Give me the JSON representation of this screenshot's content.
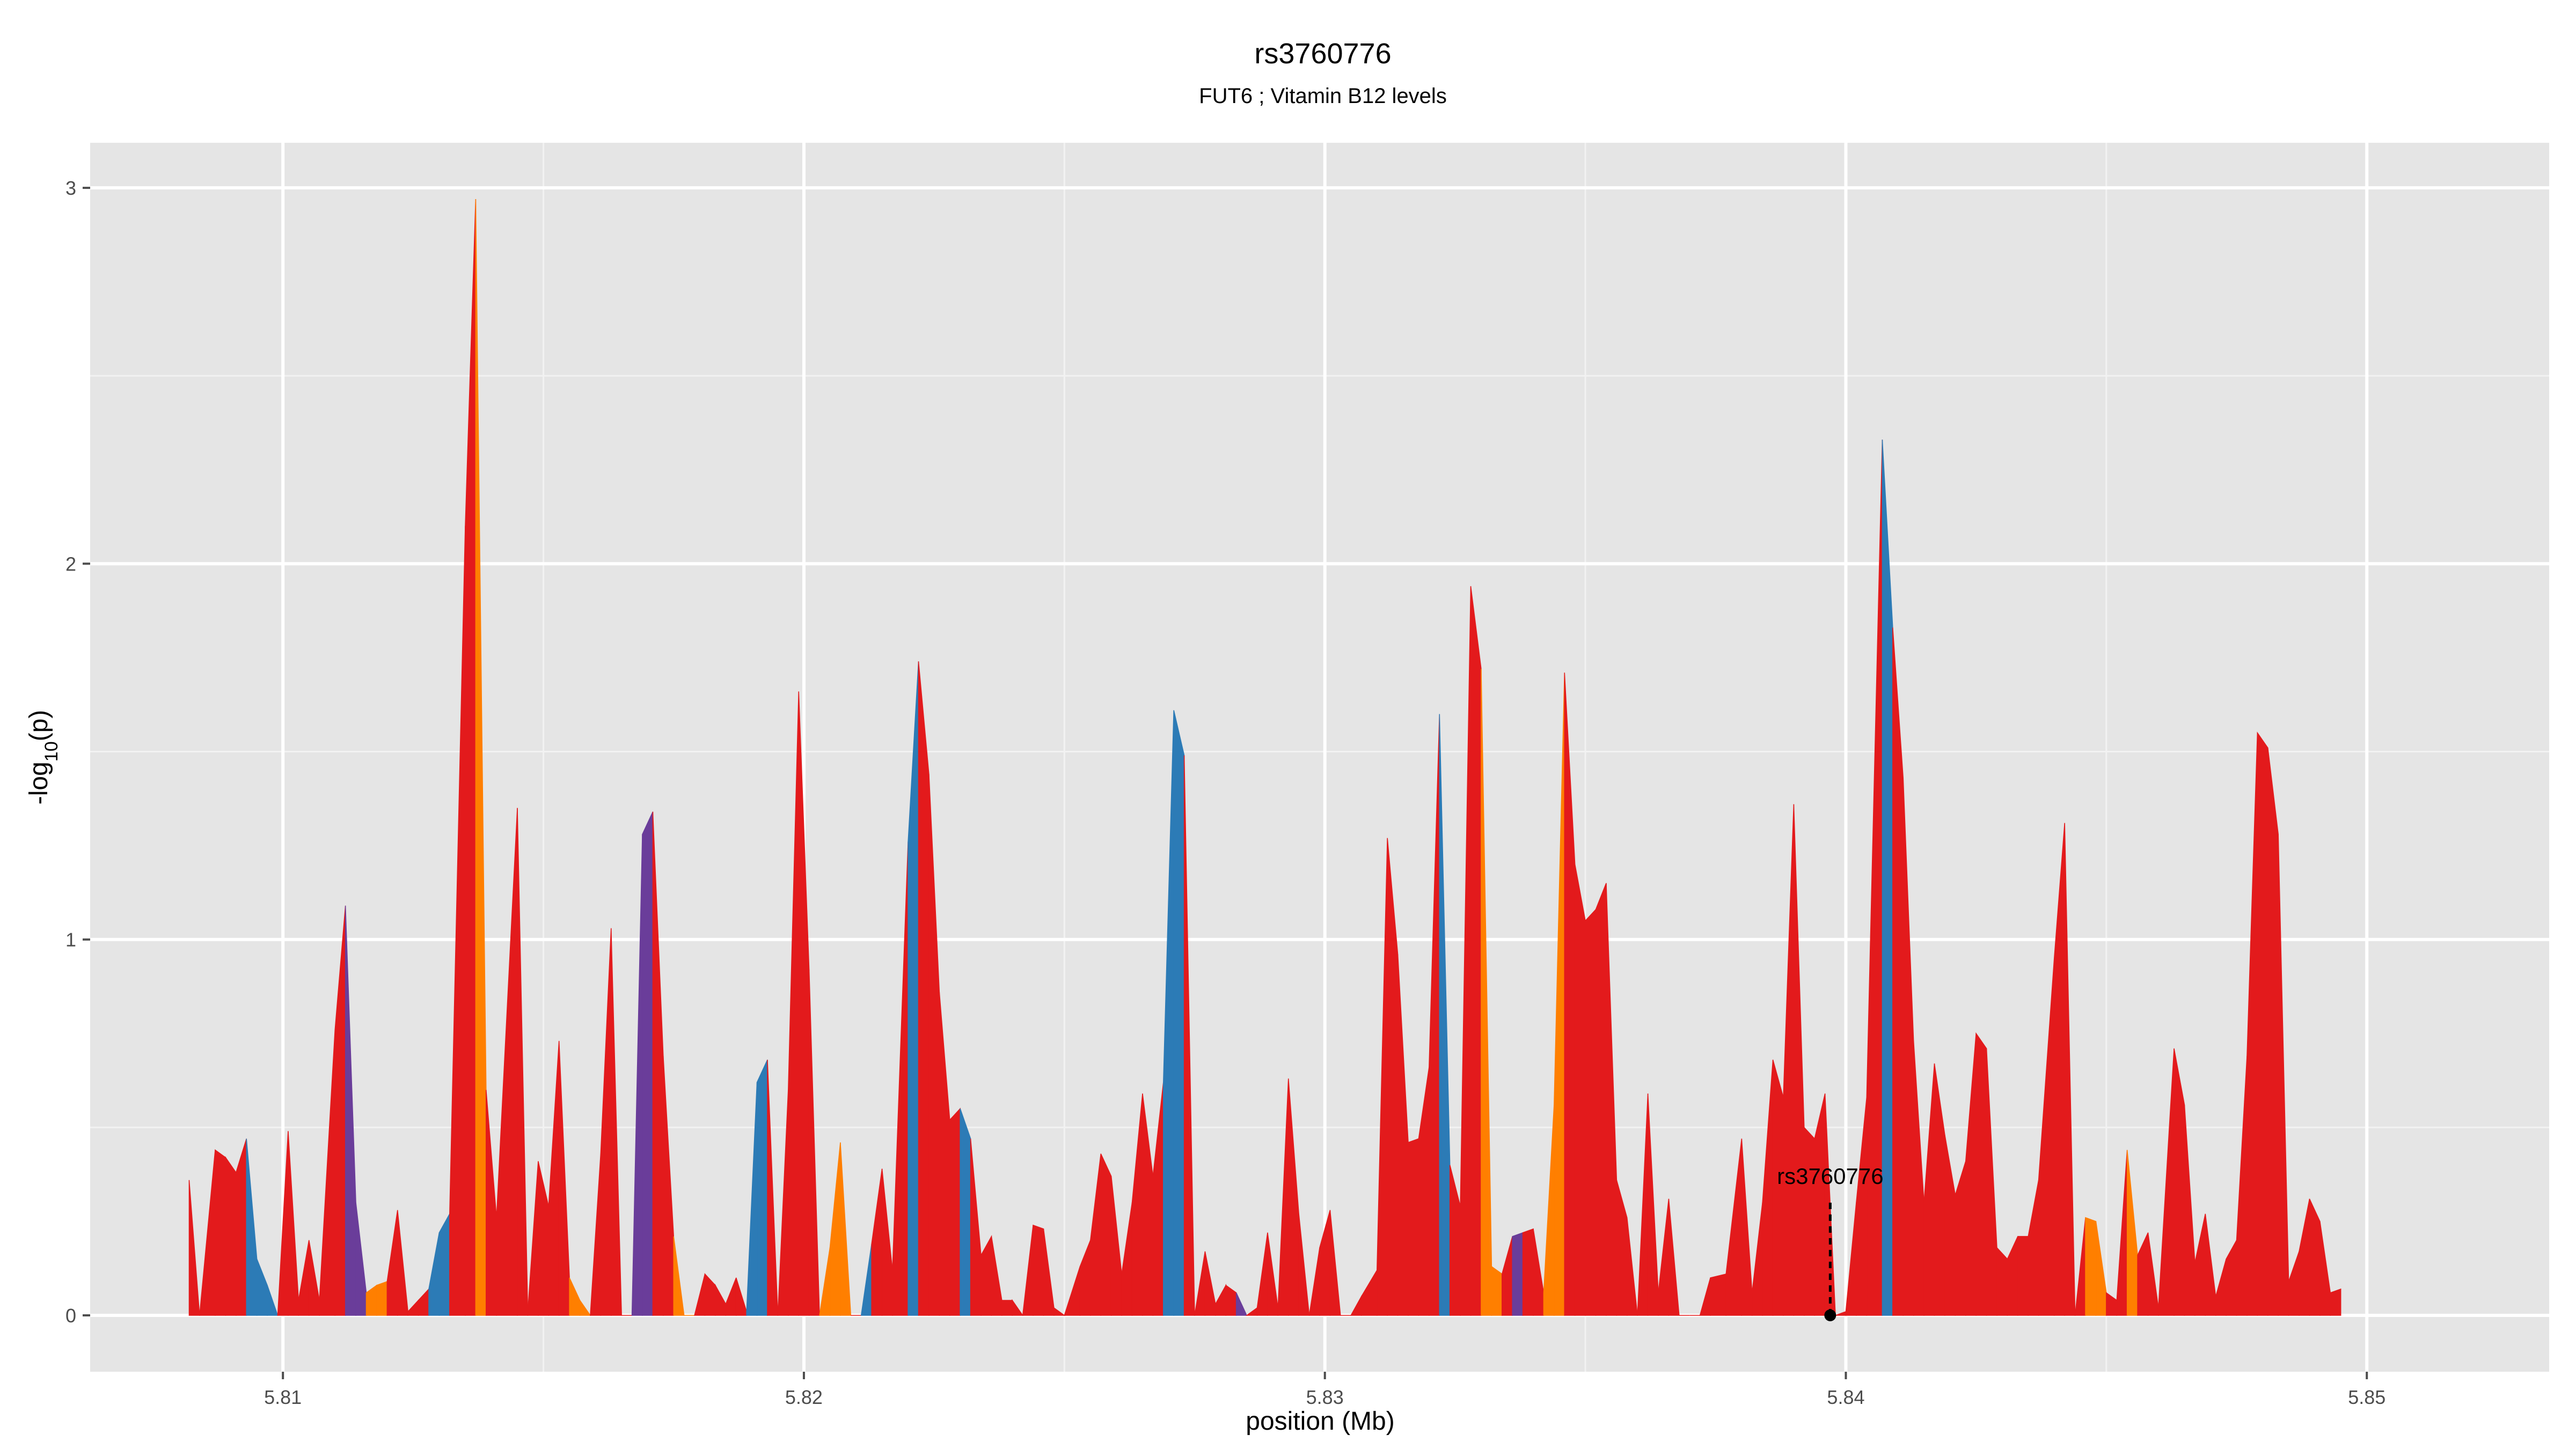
{
  "chart_data": {
    "type": "area",
    "title": "rs3760776",
    "subtitle": "FUT6 ; Vitamin B12 levels",
    "xlabel": "position (Mb)",
    "ylabel": "-log10(p)",
    "ylabel_base": "-log",
    "ylabel_sub": "10",
    "ylabel_tail": "(p)",
    "xlim": [
      5.8063,
      5.8535
    ],
    "ylim": [
      -0.15,
      3.12
    ],
    "x_ticks": [
      5.81,
      5.82,
      5.83,
      5.84,
      5.85
    ],
    "x_tick_labels": [
      "5.81",
      "5.82",
      "5.83",
      "5.84",
      "5.85"
    ],
    "y_ticks": [
      0,
      1,
      2,
      3
    ],
    "y_tick_labels": [
      "0",
      "1",
      "2",
      "3"
    ],
    "grid": true,
    "background": "#e5e5e5",
    "colors": {
      "red": "#e31a1c",
      "blue": "#2c7bb6",
      "orange": "#ff7f00",
      "purple": "#6a3d9a"
    },
    "highlight": {
      "label": "rs3760776",
      "x": 5.8397,
      "y": 0
    },
    "series": [
      {
        "points": [
          [
            5.8082,
            0.36
          ],
          [
            5.8084,
            0.0
          ],
          [
            5.8087,
            0.44
          ],
          [
            5.8089,
            0.42
          ],
          [
            5.8091,
            0.38
          ],
          [
            5.8093,
            0.47,
            "blue"
          ],
          [
            5.8095,
            0.15,
            "blue"
          ],
          [
            5.8097,
            0.08,
            "blue"
          ],
          [
            5.8099,
            0.0
          ],
          [
            5.8101,
            0.49
          ],
          [
            5.8103,
            0.04
          ],
          [
            5.8105,
            0.2
          ],
          [
            5.8107,
            0.04
          ],
          [
            5.811,
            0.76
          ],
          [
            5.8112,
            1.09,
            "purple"
          ],
          [
            5.8114,
            0.3,
            "purple"
          ],
          [
            5.8116,
            0.06,
            "orange"
          ],
          [
            5.8118,
            0.08,
            "orange"
          ],
          [
            5.812,
            0.09
          ],
          [
            5.8122,
            0.28
          ],
          [
            5.8124,
            0.01
          ],
          [
            5.8126,
            0.04
          ],
          [
            5.8128,
            0.07,
            "blue"
          ],
          [
            5.813,
            0.22,
            "blue"
          ],
          [
            5.8132,
            0.27
          ],
          [
            5.8135,
            2.1
          ],
          [
            5.8137,
            2.97,
            "orange"
          ],
          [
            5.8139,
            0.6
          ],
          [
            5.8141,
            0.26
          ],
          [
            5.8145,
            1.35
          ],
          [
            5.8147,
            0.01
          ],
          [
            5.8149,
            0.41
          ],
          [
            5.8151,
            0.29
          ],
          [
            5.8153,
            0.73
          ],
          [
            5.8155,
            0.1,
            "orange"
          ],
          [
            5.8157,
            0.04,
            "orange"
          ],
          [
            5.8159,
            0.0
          ],
          [
            5.8161,
            0.43
          ],
          [
            5.8163,
            1.03
          ],
          [
            5.8165,
            0.0
          ],
          [
            5.8167,
            0.0,
            "purple"
          ],
          [
            5.8169,
            1.28,
            "purple"
          ],
          [
            5.8171,
            1.34
          ],
          [
            5.8173,
            0.69
          ],
          [
            5.8175,
            0.21,
            "orange"
          ],
          [
            5.8177,
            0.0,
            "orange"
          ],
          [
            5.8179,
            0.0
          ],
          [
            5.8181,
            0.11
          ],
          [
            5.8183,
            0.08
          ],
          [
            5.8185,
            0.03
          ],
          [
            5.8187,
            0.1
          ],
          [
            5.8189,
            0.01,
            "blue"
          ],
          [
            5.8191,
            0.62,
            "blue"
          ],
          [
            5.8193,
            0.68
          ],
          [
            5.8195,
            0.0
          ],
          [
            5.8197,
            0.6
          ],
          [
            5.8199,
            1.66
          ],
          [
            5.8201,
            0.92
          ],
          [
            5.8203,
            0.0,
            "orange"
          ],
          [
            5.8205,
            0.18,
            "orange"
          ],
          [
            5.8207,
            0.46,
            "orange"
          ],
          [
            5.8209,
            0.0
          ],
          [
            5.8211,
            0.0,
            "blue"
          ],
          [
            5.8213,
            0.19
          ],
          [
            5.8215,
            0.39
          ],
          [
            5.8217,
            0.12
          ],
          [
            5.822,
            1.26,
            "blue"
          ],
          [
            5.8222,
            1.74
          ],
          [
            5.8224,
            1.44
          ],
          [
            5.8226,
            0.86
          ],
          [
            5.8228,
            0.52
          ],
          [
            5.823,
            0.55,
            "blue"
          ],
          [
            5.8232,
            0.47
          ],
          [
            5.8234,
            0.16
          ],
          [
            5.8236,
            0.21
          ],
          [
            5.8238,
            0.04
          ],
          [
            5.824,
            0.04
          ],
          [
            5.8242,
            0.0
          ],
          [
            5.8244,
            0.24
          ],
          [
            5.8246,
            0.23
          ],
          [
            5.8248,
            0.02
          ],
          [
            5.825,
            0.0
          ],
          [
            5.8253,
            0.13
          ],
          [
            5.8255,
            0.2
          ],
          [
            5.8257,
            0.43
          ],
          [
            5.8259,
            0.37
          ],
          [
            5.8261,
            0.11
          ],
          [
            5.8263,
            0.3
          ],
          [
            5.8265,
            0.59
          ],
          [
            5.8267,
            0.37
          ],
          [
            5.8269,
            0.62,
            "blue"
          ],
          [
            5.8271,
            1.61,
            "blue"
          ],
          [
            5.8273,
            1.49
          ],
          [
            5.8275,
            0.0
          ],
          [
            5.8277,
            0.17
          ],
          [
            5.8279,
            0.03
          ],
          [
            5.8281,
            0.08
          ],
          [
            5.8283,
            0.06,
            "purple"
          ],
          [
            5.8285,
            0.0
          ],
          [
            5.8287,
            0.02
          ],
          [
            5.8289,
            0.22
          ],
          [
            5.8291,
            0.02
          ],
          [
            5.8293,
            0.63
          ],
          [
            5.8295,
            0.27
          ],
          [
            5.8297,
            0.0
          ],
          [
            5.8299,
            0.18
          ],
          [
            5.8301,
            0.28
          ],
          [
            5.8303,
            0.0
          ],
          [
            5.8305,
            0.0
          ],
          [
            5.8307,
            0.05
          ],
          [
            5.831,
            0.12
          ],
          [
            5.8312,
            1.27
          ],
          [
            5.8314,
            0.96
          ],
          [
            5.8316,
            0.46
          ],
          [
            5.8318,
            0.47
          ],
          [
            5.832,
            0.66
          ],
          [
            5.8322,
            1.6,
            "blue"
          ],
          [
            5.8324,
            0.4
          ],
          [
            5.8326,
            0.29
          ],
          [
            5.8328,
            1.94
          ],
          [
            5.833,
            1.72,
            "orange"
          ],
          [
            5.8332,
            0.13,
            "orange"
          ],
          [
            5.8334,
            0.11
          ],
          [
            5.8336,
            0.21,
            "purple"
          ],
          [
            5.8338,
            0.22
          ],
          [
            5.834,
            0.23
          ],
          [
            5.8342,
            0.06,
            "orange"
          ],
          [
            5.8344,
            0.56,
            "orange"
          ],
          [
            5.8346,
            1.71
          ],
          [
            5.8348,
            1.2
          ],
          [
            5.835,
            1.05
          ],
          [
            5.8352,
            1.08
          ],
          [
            5.8354,
            1.15
          ],
          [
            5.8356,
            0.36
          ],
          [
            5.8358,
            0.26
          ],
          [
            5.836,
            0.0
          ],
          [
            5.8362,
            0.59
          ],
          [
            5.8364,
            0.06
          ],
          [
            5.8366,
            0.31
          ],
          [
            5.8368,
            0.0
          ],
          [
            5.837,
            0.0
          ],
          [
            5.8372,
            0.0
          ],
          [
            5.8374,
            0.1
          ],
          [
            5.8377,
            0.11
          ],
          [
            5.838,
            0.47
          ],
          [
            5.8382,
            0.06
          ],
          [
            5.8384,
            0.3
          ],
          [
            5.8386,
            0.68
          ],
          [
            5.8388,
            0.58
          ],
          [
            5.839,
            1.36
          ],
          [
            5.8392,
            0.5
          ],
          [
            5.8394,
            0.47
          ],
          [
            5.8396,
            0.59
          ],
          [
            5.8398,
            0.0
          ],
          [
            5.84,
            0.01
          ],
          [
            5.8402,
            0.3
          ],
          [
            5.8404,
            0.58
          ],
          [
            5.8407,
            2.33,
            "blue"
          ],
          [
            5.8409,
            1.83
          ],
          [
            5.8411,
            1.43
          ],
          [
            5.8413,
            0.73
          ],
          [
            5.8415,
            0.3
          ],
          [
            5.8417,
            0.67
          ],
          [
            5.8419,
            0.48
          ],
          [
            5.8421,
            0.32
          ],
          [
            5.8423,
            0.41
          ],
          [
            5.8425,
            0.75
          ],
          [
            5.8427,
            0.71
          ],
          [
            5.8429,
            0.18
          ],
          [
            5.8431,
            0.15
          ],
          [
            5.8433,
            0.21
          ],
          [
            5.8435,
            0.21
          ],
          [
            5.8437,
            0.36
          ],
          [
            5.844,
            0.95
          ],
          [
            5.8442,
            1.31
          ],
          [
            5.8444,
            0.0
          ],
          [
            5.8446,
            0.26,
            "orange"
          ],
          [
            5.8448,
            0.25,
            "orange"
          ],
          [
            5.845,
            0.06
          ],
          [
            5.8452,
            0.04
          ],
          [
            5.8454,
            0.44,
            "orange"
          ],
          [
            5.8456,
            0.16
          ],
          [
            5.8458,
            0.22
          ],
          [
            5.846,
            0.02
          ],
          [
            5.8463,
            0.71
          ],
          [
            5.8465,
            0.56
          ],
          [
            5.8467,
            0.14
          ],
          [
            5.8469,
            0.27
          ],
          [
            5.8471,
            0.05
          ],
          [
            5.8473,
            0.15
          ],
          [
            5.8475,
            0.2
          ],
          [
            5.8477,
            0.69
          ],
          [
            5.8479,
            1.55
          ],
          [
            5.8481,
            1.51
          ],
          [
            5.8483,
            1.28
          ],
          [
            5.8485,
            0.09
          ],
          [
            5.8487,
            0.17
          ],
          [
            5.8489,
            0.31
          ],
          [
            5.8491,
            0.25
          ],
          [
            5.8493,
            0.06
          ],
          [
            5.8495,
            0.07
          ]
        ]
      }
    ]
  }
}
